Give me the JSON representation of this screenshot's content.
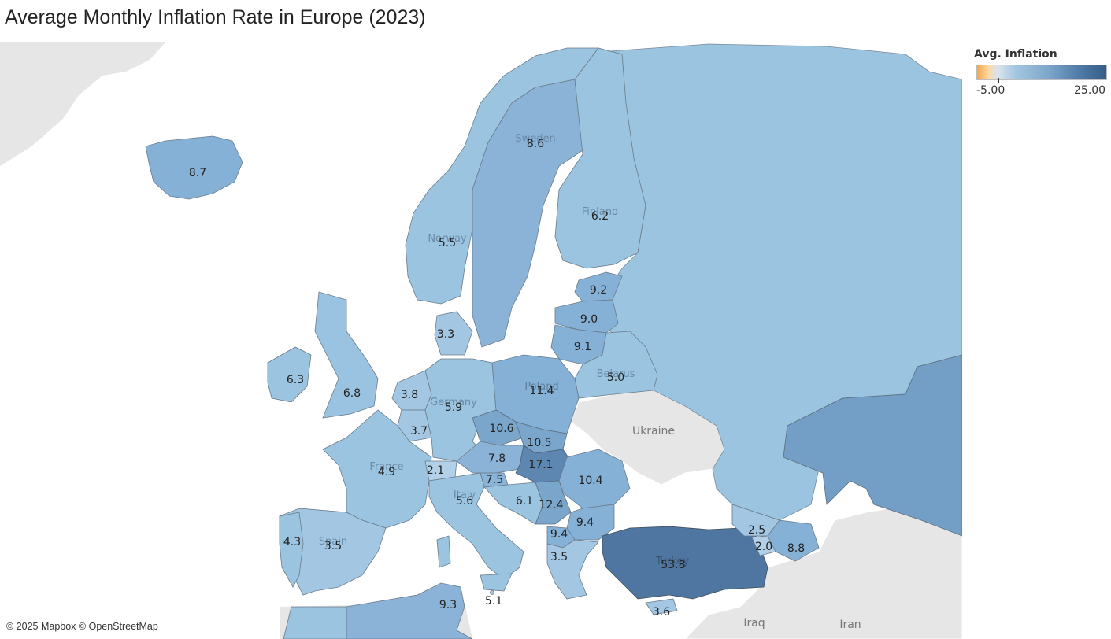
{
  "title": "Average Monthly Inflation Rate in Europe (2023)",
  "legend": {
    "title": "Avg. Inflation",
    "min_label": "-5.00",
    "max_label": "25.00",
    "min": -5,
    "max": 25
  },
  "attribution": "© 2025 Mapbox © OpenStreetMap",
  "basemap_labels": {
    "ukraine": "Ukraine",
    "iraq": "Iraq",
    "iran": "Iran",
    "sweden": "Sweden",
    "finland": "Finland",
    "norway": "Norway",
    "poland": "Poland",
    "germany": "Germany",
    "france": "France",
    "belarus": "Belarus",
    "spain": "Spain",
    "italy": "Italy",
    "turkey": "Turkey"
  },
  "countries": [
    {
      "id": "iceland",
      "value": "8.7"
    },
    {
      "id": "norway",
      "value": "5.5"
    },
    {
      "id": "sweden",
      "value": "8.6"
    },
    {
      "id": "finland",
      "value": "6.2"
    },
    {
      "id": "russia",
      "value": ""
    },
    {
      "id": "estonia",
      "value": "9.2"
    },
    {
      "id": "latvia",
      "value": "9.0"
    },
    {
      "id": "lithuania",
      "value": "9.1"
    },
    {
      "id": "belarus",
      "value": "5.0"
    },
    {
      "id": "denmark",
      "value": "3.3"
    },
    {
      "id": "ireland",
      "value": "6.3"
    },
    {
      "id": "uk",
      "value": "6.8"
    },
    {
      "id": "belgium",
      "value": "3.8"
    },
    {
      "id": "germany",
      "value": "5.9"
    },
    {
      "id": "poland",
      "value": "11.4"
    },
    {
      "id": "luxembourg",
      "value": "3.7"
    },
    {
      "id": "czechia",
      "value": "10.6"
    },
    {
      "id": "slovakia",
      "value": "10.5"
    },
    {
      "id": "austria",
      "value": "7.8"
    },
    {
      "id": "hungary",
      "value": "17.1"
    },
    {
      "id": "romania",
      "value": "10.4"
    },
    {
      "id": "france",
      "value": "4.9"
    },
    {
      "id": "switzerland",
      "value": "2.1"
    },
    {
      "id": "slovenia",
      "value": "7.5"
    },
    {
      "id": "italy",
      "value": "5.6"
    },
    {
      "id": "croatia",
      "value": "6.1"
    },
    {
      "id": "serbia",
      "value": "12.4"
    },
    {
      "id": "bulgaria",
      "value": "9.4"
    },
    {
      "id": "north_macedonia",
      "value": "9.4"
    },
    {
      "id": "greece",
      "value": "3.5"
    },
    {
      "id": "portugal",
      "value": "4.3"
    },
    {
      "id": "spain",
      "value": "3.5"
    },
    {
      "id": "turkey",
      "value": "53.8"
    },
    {
      "id": "georgia",
      "value": "2.5"
    },
    {
      "id": "armenia",
      "value": "2.0"
    },
    {
      "id": "azerbaijan",
      "value": "8.8"
    },
    {
      "id": "kazakhstan",
      "value": ""
    },
    {
      "id": "tunisia",
      "value": "9.3"
    },
    {
      "id": "malta",
      "value": "5.1"
    },
    {
      "id": "cyprus",
      "value": "3.6"
    }
  ]
}
